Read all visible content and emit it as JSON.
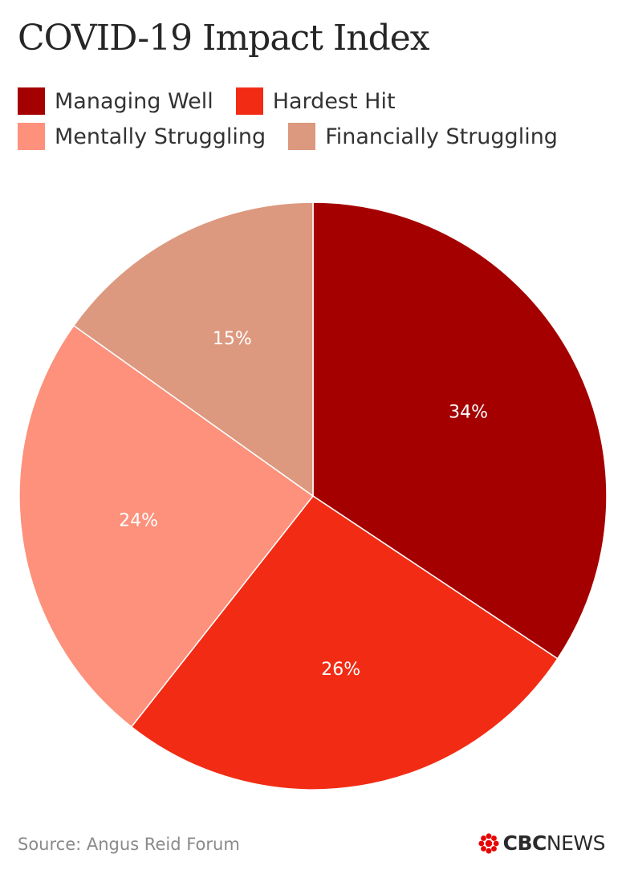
{
  "chart_data": {
    "type": "pie",
    "title": "COVID-19 Impact Index",
    "legend_placement": "top",
    "slices": [
      {
        "name": "Managing Well",
        "value": 34,
        "label": "34%",
        "color": "#a50000"
      },
      {
        "name": "Hardest Hit",
        "value": 26,
        "label": "26%",
        "color": "#f22c14"
      },
      {
        "name": "Mentally Struggling",
        "value": 24,
        "label": "24%",
        "color": "#fd917c"
      },
      {
        "name": "Financially Struggling",
        "value": 15,
        "label": "15%",
        "color": "#dc997f"
      }
    ]
  },
  "footer": {
    "source": "Source: Angus Reid Forum",
    "logo_bold": "CBC",
    "logo_light": "NEWS",
    "logo_icon": "cbc-gem-icon",
    "logo_color": "#e60505"
  }
}
